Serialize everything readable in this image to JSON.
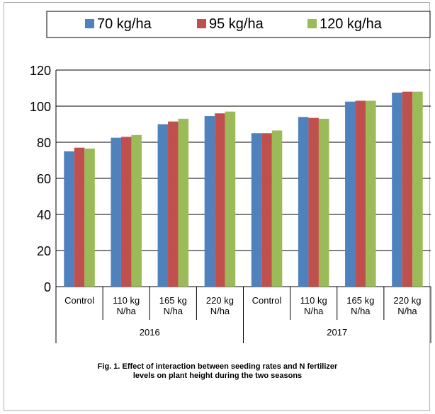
{
  "chart_data": {
    "type": "bar",
    "groups": [
      "2016",
      "2017"
    ],
    "categories": [
      [
        "Control"
      ],
      [
        "110 kg",
        "N/ha"
      ],
      [
        "165 kg",
        "N/ha"
      ],
      [
        "220 kg",
        "N/ha"
      ],
      [
        "Control"
      ],
      [
        "110 kg",
        "N/ha"
      ],
      [
        "165 kg",
        "N/ha"
      ],
      [
        "220 kg",
        "N/ha"
      ]
    ],
    "series": [
      {
        "name": "70 kg/ha",
        "color": "#4F81BD",
        "values": [
          75,
          82.5,
          90,
          94.5,
          85,
          94,
          102.5,
          107.5
        ]
      },
      {
        "name": "95 kg/ha",
        "color": "#C0504D",
        "values": [
          77,
          83,
          91.5,
          96,
          85,
          93.5,
          103,
          108
        ]
      },
      {
        "name": "120 kg/ha",
        "color": "#9BBB59",
        "values": [
          76.5,
          84,
          93,
          97,
          86.5,
          93,
          103,
          108
        ]
      }
    ],
    "ylim": [
      0,
      120
    ],
    "yticks": [
      0,
      20,
      40,
      60,
      80,
      100,
      120
    ],
    "grid": true,
    "legend_position": "top"
  },
  "caption": {
    "line1": "Fig. 1. Effect of interaction between seeding rates and N fertilizer",
    "line2": "levels on plant height during the two seasons"
  }
}
